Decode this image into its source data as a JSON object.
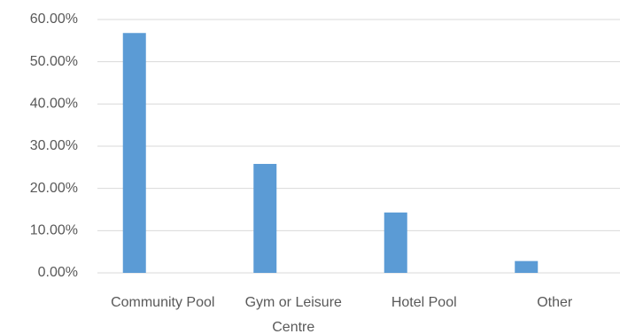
{
  "chart_data": {
    "type": "bar",
    "categories": [
      "Community Pool",
      "Gym or Leisure Centre",
      "Hotel Pool",
      "Other"
    ],
    "values": [
      56.8,
      25.8,
      14.3,
      2.8
    ],
    "color": "#5b9bd5",
    "ylim": [
      0,
      60
    ],
    "yticks": [
      {
        "value": 0,
        "label": "0.00%"
      },
      {
        "value": 10,
        "label": "10.00%"
      },
      {
        "value": 20,
        "label": "20.00%"
      },
      {
        "value": 30,
        "label": "30.00%"
      },
      {
        "value": 40,
        "label": "40.00%"
      },
      {
        "value": 50,
        "label": "50.00%"
      },
      {
        "value": 60,
        "label": "60.00%"
      }
    ],
    "grid": true
  }
}
